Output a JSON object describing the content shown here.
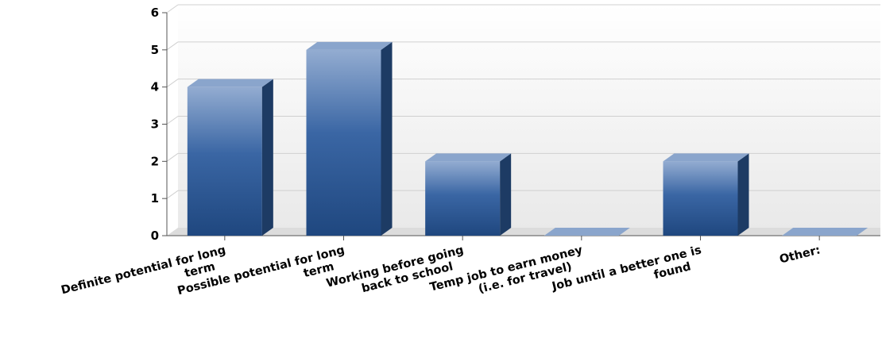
{
  "chart_data": {
    "type": "bar",
    "title": "",
    "xlabel": "",
    "ylabel": "",
    "categories": [
      [
        "Definite potential for long",
        "term"
      ],
      [
        "Possible potential for long",
        "term"
      ],
      [
        "Working before going",
        "back to school"
      ],
      [
        "Temp job to earn money",
        "(i.e. for travel)"
      ],
      [
        "Job until a better one is",
        "found"
      ],
      [
        "Other:"
      ]
    ],
    "values": [
      4,
      5,
      2,
      0,
      2,
      0
    ],
    "ylim": [
      0,
      6
    ],
    "yticks": [
      0,
      1,
      2,
      3,
      4,
      5,
      6
    ],
    "grid": true,
    "legend": "none",
    "colors": {
      "bar_top_light": "#93acd1",
      "bar_mid": "#3a66a4",
      "bar_bottom": "#1f477f",
      "bar_side": "#1d3b64",
      "bar_cap": "#8aa5cc",
      "grid": "#d0d0d0",
      "axis": "#555555",
      "plot_bg": "#f3f3f3"
    }
  }
}
